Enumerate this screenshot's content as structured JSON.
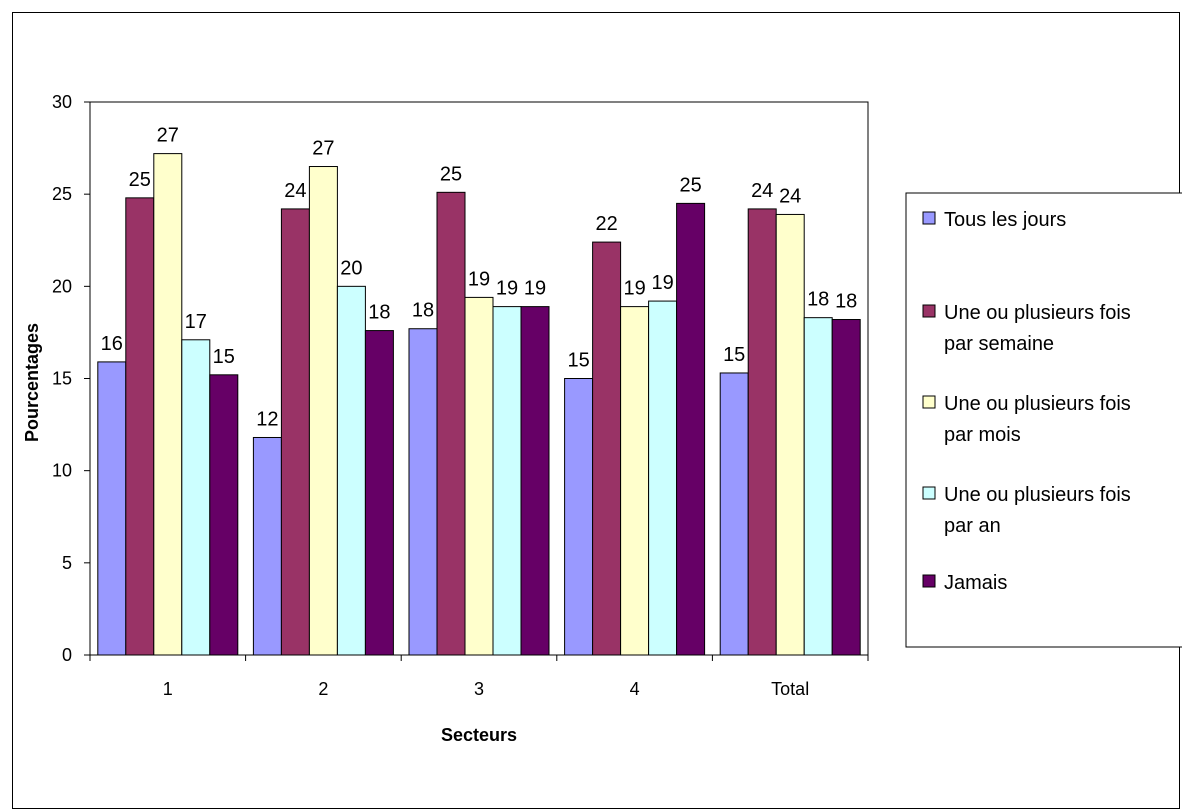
{
  "chart_data": {
    "type": "bar",
    "title": "",
    "xlabel": "Secteurs",
    "ylabel": "Pourcentages",
    "ylim": [
      0,
      30
    ],
    "yticks": [
      0,
      5,
      10,
      15,
      20,
      25,
      30
    ],
    "grid": false,
    "legend_position": "right",
    "categories": [
      "1",
      "2",
      "3",
      "4",
      "Total"
    ],
    "series": [
      {
        "name": "Tous les jours",
        "color": "#9999FF",
        "values": [
          15.9,
          11.8,
          17.7,
          15.0,
          15.3
        ],
        "labels": [
          "16",
          "12",
          "18",
          "15",
          "15"
        ]
      },
      {
        "name": "Une ou plusieurs fois par semaine",
        "color": "#993366",
        "values": [
          24.8,
          24.2,
          25.1,
          22.4,
          24.2
        ],
        "labels": [
          "25",
          "24",
          "25",
          "22",
          "24"
        ]
      },
      {
        "name": "Une ou plusieurs fois par mois",
        "color": "#FFFFCC",
        "values": [
          27.2,
          26.5,
          19.4,
          18.9,
          23.9
        ],
        "labels": [
          "27",
          "27",
          "19",
          "19",
          "24"
        ]
      },
      {
        "name": "Une ou plusieurs fois par an",
        "color": "#CCFFFF",
        "values": [
          17.1,
          20.0,
          18.9,
          19.2,
          18.3
        ],
        "labels": [
          "17",
          "20",
          "19",
          "19",
          "18"
        ]
      },
      {
        "name": "Jamais",
        "color": "#660066",
        "values": [
          15.2,
          17.6,
          18.9,
          24.5,
          18.2
        ],
        "labels": [
          "15",
          "18",
          "19",
          "25",
          "18"
        ]
      }
    ],
    "legend_lines": [
      [
        "Tous les jours"
      ],
      [
        "Une ou plusieurs fois",
        "par semaine"
      ],
      [
        "Une ou plusieurs fois",
        "par mois"
      ],
      [
        "Une ou plusieurs fois",
        "par an"
      ],
      [
        "Jamais"
      ]
    ]
  }
}
